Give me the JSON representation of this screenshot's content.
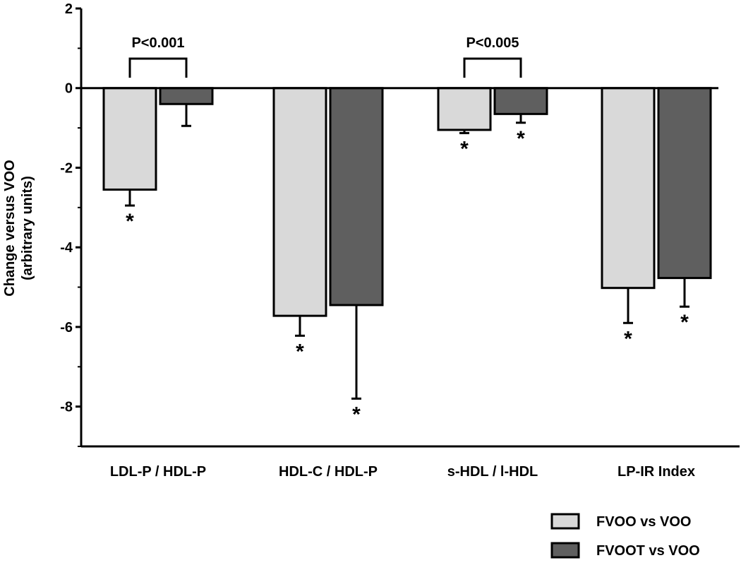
{
  "chart_data": {
    "type": "bar",
    "title": "",
    "xlabel": "",
    "ylabel": "Change versus VOO",
    "ylabel_line2": "(arbitrary units)",
    "ylim": [
      -9,
      2
    ],
    "yticks": [
      2,
      0,
      -2,
      -4,
      -6,
      -8
    ],
    "categories": [
      "LDL-P / HDL-P",
      "HDL-C / HDL-P",
      "s-HDL / l-HDL",
      "LP-IR Index"
    ],
    "series": [
      {
        "name": "FVOO vs VOO",
        "color": "#d9d9d9",
        "values": [
          -2.55,
          -5.72,
          -1.05,
          -5.02
        ],
        "error": [
          0.4,
          0.5,
          0.08,
          0.88
        ],
        "significant": [
          true,
          true,
          true,
          true
        ]
      },
      {
        "name": "FVOOT vs VOO",
        "color": "#5f5f5f",
        "values": [
          -0.4,
          -5.45,
          -0.65,
          -4.77
        ],
        "error": [
          0.55,
          2.35,
          0.22,
          0.72
        ],
        "significant": [
          false,
          true,
          true,
          true
        ]
      }
    ],
    "significance_marker": "*",
    "comparisons": [
      {
        "category_index": 0,
        "label": "P<0.001"
      },
      {
        "category_index": 2,
        "label": "P<0.005"
      }
    ],
    "legend_position": "bottom-right",
    "grid": false
  }
}
